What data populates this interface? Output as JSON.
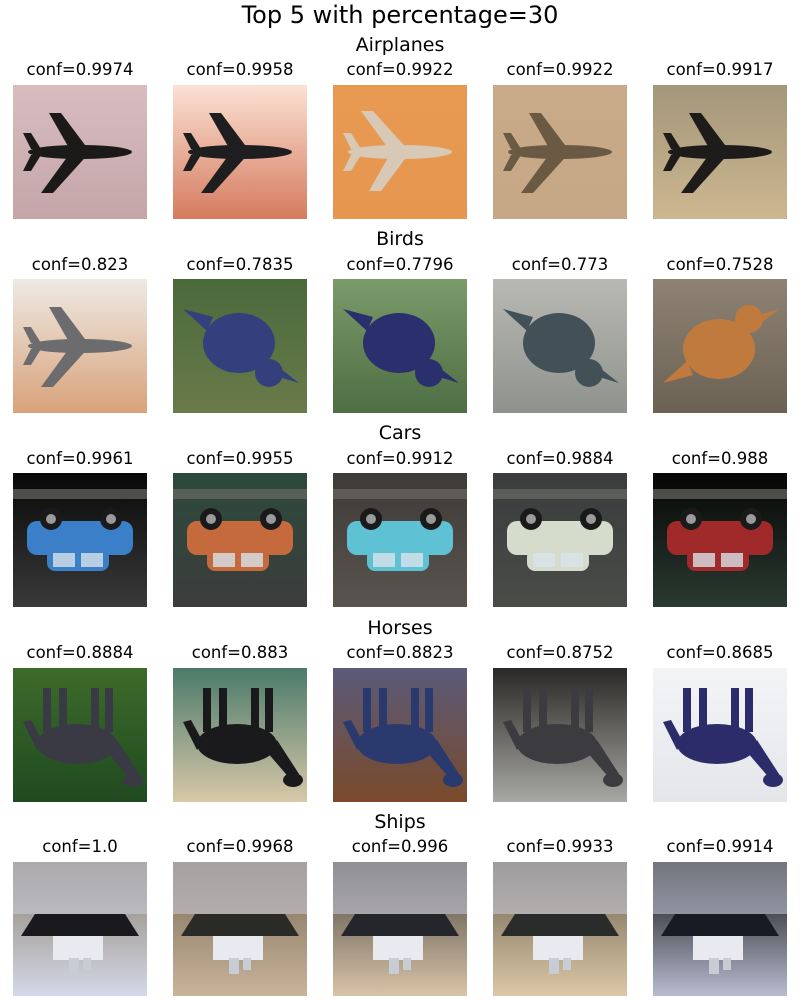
{
  "figure_title": "Top 5 with percentage=30",
  "sections": [
    {
      "title": "Airplanes",
      "tiles": [
        {
          "conf": "conf=0.9974",
          "icon": "airplane-icon",
          "bg": [
            "#d8bcbf",
            "#c4a6a8"
          ],
          "ink": "#1b1a19",
          "flip": false
        },
        {
          "conf": "conf=0.9958",
          "icon": "airplane-icon",
          "bg": [
            "#fbe1d4",
            "#d57b5e"
          ],
          "ink": "#1e1d1f",
          "flip": false
        },
        {
          "conf": "conf=0.9922",
          "icon": "airplane-icon",
          "bg": [
            "#e89a52",
            "#e6964f"
          ],
          "ink": "#d8c9b6",
          "flip": true
        },
        {
          "conf": "conf=0.9922",
          "icon": "airplane-icon",
          "bg": [
            "#c8aa88",
            "#c6a786"
          ],
          "ink": "#6a5a44",
          "flip": false
        },
        {
          "conf": "conf=0.9917",
          "icon": "airplane-icon",
          "bg": [
            "#a3967a",
            "#cdb790"
          ],
          "ink": "#1e1c1a",
          "flip": false
        }
      ]
    },
    {
      "title": "Birds",
      "tiles": [
        {
          "conf": "conf=0.823",
          "icon": "airplane-icon",
          "bg": [
            "#eeeae4",
            "#d8a27a"
          ],
          "ink": "#6c6c6e",
          "flip": false
        },
        {
          "conf": "conf=0.7835",
          "icon": "bird-icon",
          "bg": [
            "#4a6a3c",
            "#6a7a4a"
          ],
          "ink": "#34407e",
          "flip": true
        },
        {
          "conf": "conf=0.7796",
          "icon": "bird-icon",
          "bg": [
            "#7a9a6a",
            "#4e6e44"
          ],
          "ink": "#2a2f6e",
          "flip": true
        },
        {
          "conf": "conf=0.773",
          "icon": "bird-icon",
          "bg": [
            "#b9b9b4",
            "#8f928c"
          ],
          "ink": "#425058",
          "flip": true
        },
        {
          "conf": "conf=0.7528",
          "icon": "bird-icon",
          "bg": [
            "#8d8274",
            "#6c6254"
          ],
          "ink": "#c07a3e",
          "flip": false
        }
      ]
    },
    {
      "title": "Cars",
      "tiles": [
        {
          "conf": "conf=0.9961",
          "icon": "car-icon",
          "bg": [
            "#080808",
            "#3a3a3a"
          ],
          "ink": "#3b7fc8",
          "flip": true
        },
        {
          "conf": "conf=0.9955",
          "icon": "car-icon",
          "bg": [
            "#2c4a3c",
            "#3c3c3c"
          ],
          "ink": "#c46a3c",
          "flip": true
        },
        {
          "conf": "conf=0.9912",
          "icon": "car-icon",
          "bg": [
            "#3e3a38",
            "#5a544e"
          ],
          "ink": "#5fc2d4",
          "flip": true
        },
        {
          "conf": "conf=0.9884",
          "icon": "car-icon",
          "bg": [
            "#3a3c3e",
            "#4a4c48"
          ],
          "ink": "#d6dccc",
          "flip": true
        },
        {
          "conf": "conf=0.988",
          "icon": "car-icon",
          "bg": [
            "#060606",
            "#2a3a30"
          ],
          "ink": "#a02a2a",
          "flip": true
        }
      ]
    },
    {
      "title": "Horses",
      "tiles": [
        {
          "conf": "conf=0.8884",
          "icon": "horse-icon",
          "bg": [
            "#3d6b2a",
            "#1f4a20"
          ],
          "ink": "#3a3a44",
          "flip": true
        },
        {
          "conf": "conf=0.883",
          "icon": "horse-icon",
          "bg": [
            "#4a7a6a",
            "#d8c8a8"
          ],
          "ink": "#1a1a1c",
          "flip": true
        },
        {
          "conf": "conf=0.8823",
          "icon": "horse-icon",
          "bg": [
            "#5a5a7a",
            "#7a4a2a"
          ],
          "ink": "#2a3a6e",
          "flip": true
        },
        {
          "conf": "conf=0.8752",
          "icon": "horse-icon",
          "bg": [
            "#2a2826",
            "#a8a8a4"
          ],
          "ink": "#3c3c40",
          "flip": true
        },
        {
          "conf": "conf=0.8685",
          "icon": "horse-icon",
          "bg": [
            "#f2f4f6",
            "#e4e6ea"
          ],
          "ink": "#2c2c6a",
          "flip": true
        }
      ]
    },
    {
      "title": "Ships",
      "tiles": [
        {
          "conf": "conf=1.0",
          "icon": "ship-icon",
          "bg": [
            "#8a7e6c",
            "#d4d8e8"
          ],
          "ink": "#1a1a1e",
          "flip": true
        },
        {
          "conf": "conf=0.9968",
          "icon": "ship-icon",
          "bg": [
            "#7c6a58",
            "#c8b49a"
          ],
          "ink": "#2a2a26",
          "flip": true
        },
        {
          "conf": "conf=0.996",
          "icon": "ship-icon",
          "bg": [
            "#4a4440",
            "#d8c4a8"
          ],
          "ink": "#24262c",
          "flip": true
        },
        {
          "conf": "conf=0.9933",
          "icon": "ship-icon",
          "bg": [
            "#6a6050",
            "#dcc8a6"
          ],
          "ink": "#2a2c2c",
          "flip": true
        },
        {
          "conf": "conf=0.9914",
          "icon": "ship-icon",
          "bg": [
            "#0a0a0a",
            "#b8bcd0"
          ],
          "ink": "#181a24",
          "flip": true
        }
      ]
    }
  ]
}
